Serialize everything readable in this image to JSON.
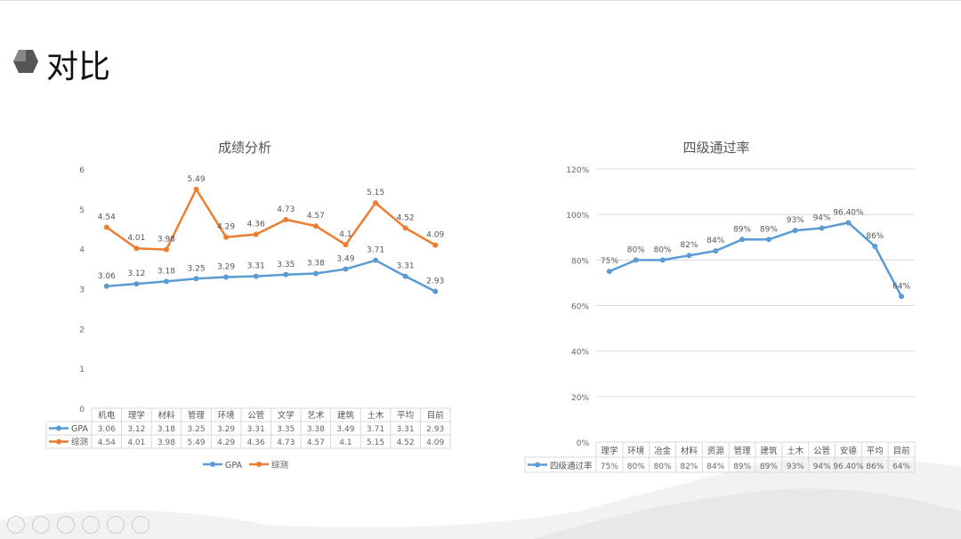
{
  "slide": {
    "title": "对比",
    "icon": "hexagon-bullet-icon"
  },
  "chart_data": [
    {
      "type": "line",
      "title": "成绩分析",
      "categories": [
        "机电",
        "理学",
        "材料",
        "管理",
        "环境",
        "公管",
        "文学",
        "艺术",
        "建筑",
        "土木",
        "平均",
        "目前"
      ],
      "ylim": [
        0,
        6
      ],
      "yticks": [
        "0",
        "1",
        "2",
        "3",
        "4",
        "5",
        "6"
      ],
      "grid": false,
      "legend": "bottom",
      "data_table": true,
      "series": [
        {
          "name": "GPA",
          "color": "#5b9bd5",
          "values": [
            3.06,
            3.12,
            3.18,
            3.25,
            3.29,
            3.31,
            3.35,
            3.38,
            3.49,
            3.71,
            3.31,
            2.93
          ],
          "labels": [
            "3.06",
            "3.12",
            "3.18",
            "3.25",
            "3.29",
            "3.31",
            "3.35",
            "3.38",
            "3.49",
            "3.71",
            "3.31",
            "2.93"
          ]
        },
        {
          "name": "综测",
          "color": "#ed7d31",
          "values": [
            4.54,
            4.01,
            3.98,
            5.49,
            4.29,
            4.36,
            4.73,
            4.57,
            4.1,
            5.15,
            4.52,
            4.09
          ],
          "labels": [
            "4.54",
            "4.01",
            "3.98",
            "5.49",
            "4.29",
            "4.36",
            "4.73",
            "4.57",
            "4.1",
            "5.15",
            "4.52",
            "4.09"
          ]
        }
      ]
    },
    {
      "type": "line",
      "title": "四级通过率",
      "categories": [
        "理学",
        "环境",
        "冶金",
        "材料",
        "资源",
        "管理",
        "建筑",
        "土木",
        "公管",
        "安德",
        "平均",
        "目前"
      ],
      "ylim": [
        0,
        120
      ],
      "yticks": [
        "0%",
        "20%",
        "40%",
        "60%",
        "80%",
        "100%",
        "120%"
      ],
      "grid": true,
      "data_table": true,
      "series": [
        {
          "name": "四级通过率",
          "color": "#5b9bd5",
          "values": [
            75,
            80,
            80,
            82,
            84,
            89,
            89,
            93,
            94,
            96.4,
            86,
            64
          ],
          "labels": [
            "75%",
            "80%",
            "80%",
            "82%",
            "84%",
            "89%",
            "89%",
            "93%",
            "94%",
            "96.40%",
            "86%",
            "64%"
          ]
        }
      ]
    }
  ]
}
